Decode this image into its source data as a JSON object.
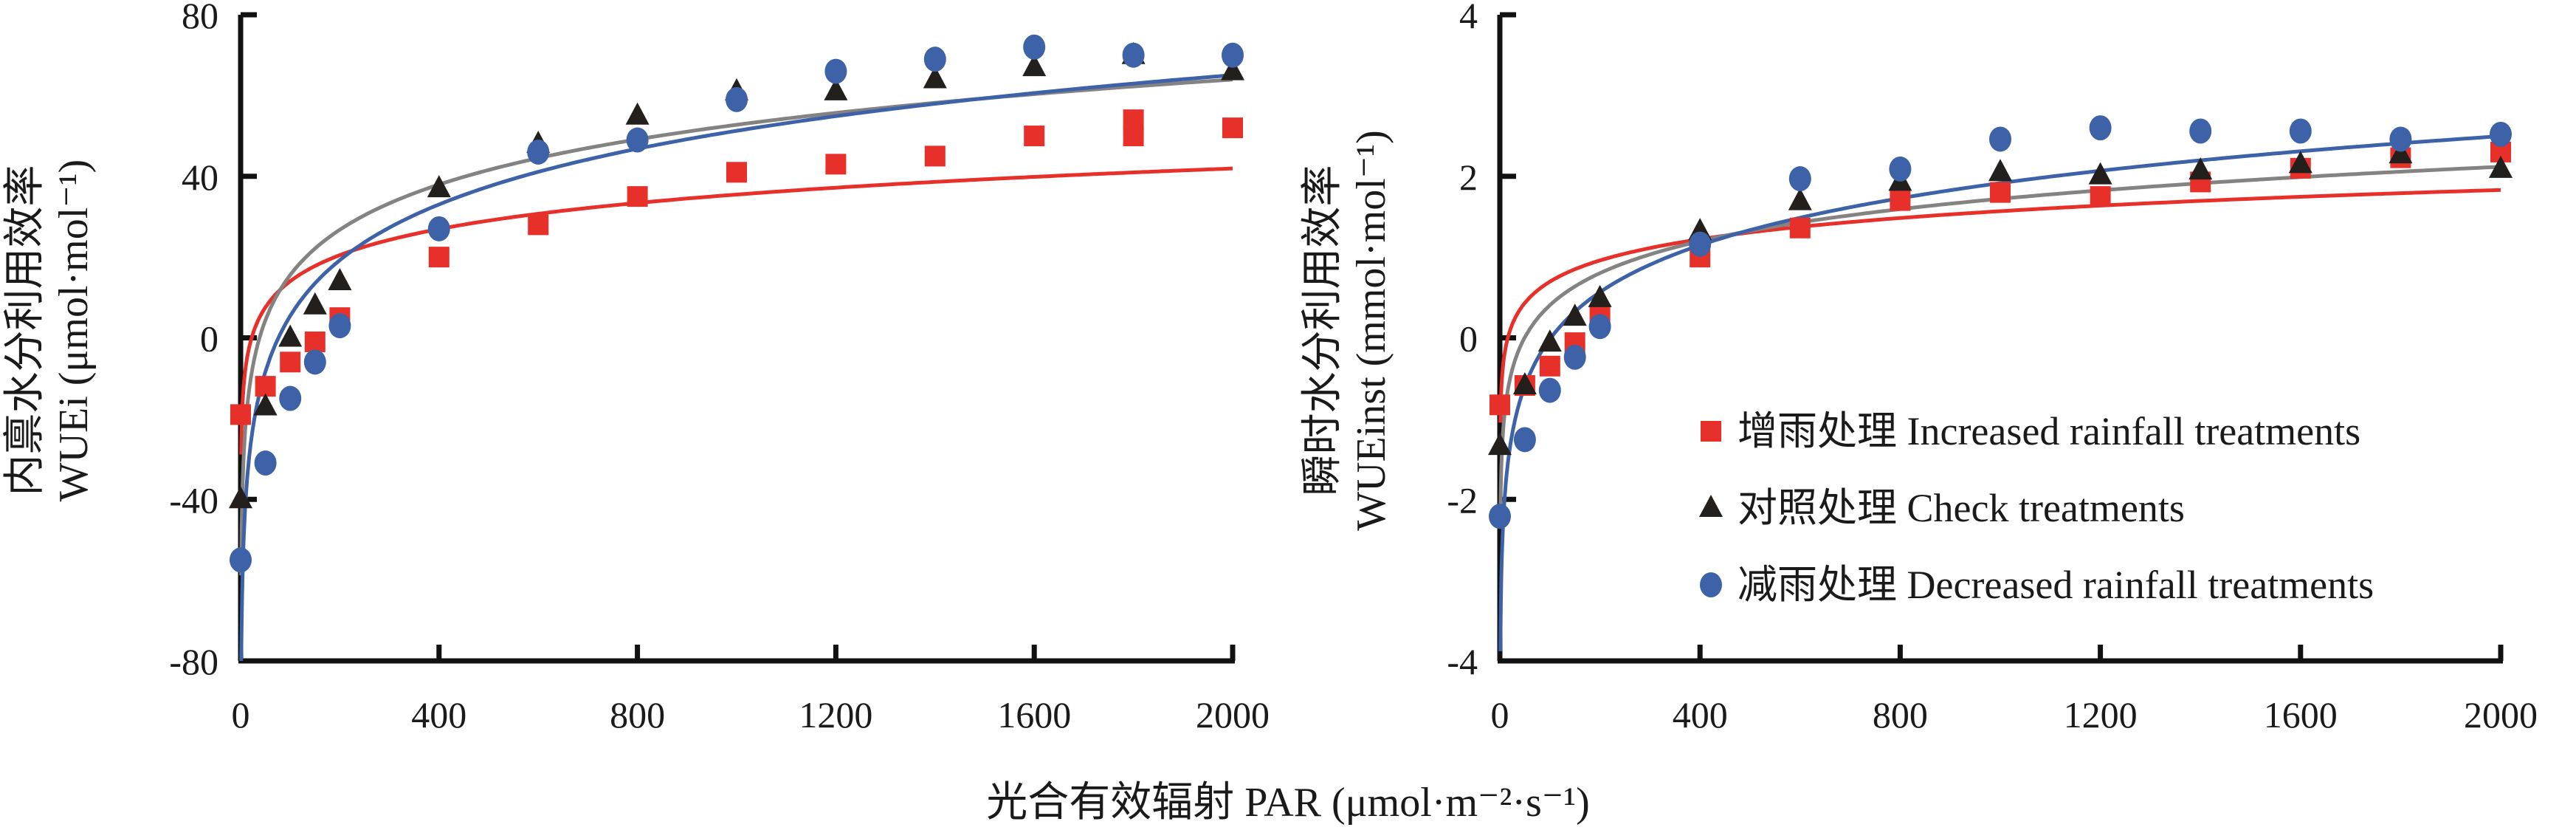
{
  "figure": {
    "x_axis_title": "光合有效辐射 PAR (μmol·m⁻²·s⁻¹)"
  },
  "legend": {
    "placement": "right-panel-lower-right",
    "entries": [
      {
        "key": "increased",
        "label": "增雨处理 Increased rainfall treatments",
        "marker": "square",
        "color": "#e8302a"
      },
      {
        "key": "check",
        "label": "对照处理 Check treatments",
        "marker": "triangle",
        "color": "#231f1c"
      },
      {
        "key": "decreased",
        "label": "减雨处理 Decreased rainfall treatments",
        "marker": "circle",
        "color": "#3d62a8"
      }
    ]
  },
  "chart_data": [
    {
      "type": "scatter",
      "title": "",
      "ylabel_line1": "内禀水分利用效率",
      "ylabel_line2": "WUEi (μmol·mol⁻¹)",
      "xlabel": "光合有效辐射 PAR (μmol·m⁻²·s⁻¹)",
      "xlim": [
        0,
        2000
      ],
      "ylim": [
        -80,
        80
      ],
      "xticks": [
        0,
        400,
        800,
        1200,
        1600,
        2000
      ],
      "yticks": [
        -80,
        -40,
        0,
        40,
        80
      ],
      "grid": false,
      "series": [
        {
          "name": "增雨处理 Increased rainfall treatments",
          "marker": "square",
          "color": "#e8302a",
          "fit_color": "#e8302a",
          "x": [
            0,
            50,
            100,
            150,
            200,
            400,
            600,
            800,
            1000,
            1200,
            1400,
            1600,
            1800,
            1800,
            2000
          ],
          "y": [
            -19,
            -12,
            -6,
            -1,
            5,
            20,
            28,
            35,
            41,
            43,
            45,
            50,
            54,
            50,
            52
          ],
          "fit": {
            "model": "logarithmic",
            "a": 9.32,
            "b": -28.9
          }
        },
        {
          "name": "对照处理 Check treatments",
          "marker": "triangle",
          "color": "#231f1c",
          "fit_color": "#858282",
          "x": [
            0,
            50,
            100,
            150,
            200,
            400,
            600,
            800,
            1000,
            1200,
            1400,
            1600,
            1800,
            2000
          ],
          "y": [
            -40,
            -17,
            0,
            8,
            14,
            37,
            48,
            55,
            61,
            61,
            64,
            67,
            70,
            66
          ],
          "fit": {
            "model": "logarithmic",
            "a": 16.15,
            "b": -58.8
          }
        },
        {
          "name": "减雨处理 Decreased rainfall treatments",
          "marker": "circle",
          "color": "#3d62a8",
          "fit_color": "#3d62a8",
          "x": [
            0,
            50,
            100,
            150,
            200,
            400,
            600,
            800,
            1000,
            1200,
            1400,
            1600,
            1800,
            2000
          ],
          "y": [
            -55,
            -31,
            -15,
            -6,
            3,
            27,
            46,
            49,
            59,
            66,
            69,
            72,
            70,
            70
          ],
          "fit": {
            "model": "logarithmic",
            "a": 19.9,
            "b": -86.2
          }
        }
      ]
    },
    {
      "type": "scatter",
      "title": "",
      "ylabel_line1": "瞬时水分利用效率",
      "ylabel_line2": "WUEinst (mmol·mol⁻¹)",
      "xlabel": "光合有效辐射 PAR (μmol·m⁻²·s⁻¹)",
      "xlim": [
        0,
        2000
      ],
      "ylim": [
        -4,
        4
      ],
      "xticks": [
        0,
        400,
        800,
        1200,
        1600,
        2000
      ],
      "yticks": [
        -4,
        -2,
        0,
        2,
        4
      ],
      "grid": false,
      "series": [
        {
          "name": "增雨处理 Increased rainfall treatments",
          "marker": "square",
          "color": "#e8302a",
          "fit_color": "#e8302a",
          "x": [
            0,
            50,
            100,
            150,
            200,
            400,
            600,
            800,
            1000,
            1200,
            1400,
            1600,
            1800,
            2000
          ],
          "y": [
            -0.83,
            -0.59,
            -0.35,
            -0.06,
            0.28,
            1.0,
            1.36,
            1.7,
            1.8,
            1.75,
            1.93,
            2.1,
            2.23,
            2.3
          ],
          "fit": {
            "model": "logarithmic",
            "a": 0.379,
            "b": -1.05
          }
        },
        {
          "name": "对照处理 Check treatments",
          "marker": "triangle",
          "color": "#231f1c",
          "fit_color": "#858282",
          "x": [
            0,
            50,
            100,
            150,
            200,
            400,
            600,
            800,
            1000,
            1200,
            1400,
            1600,
            1800,
            2000
          ],
          "y": [
            -1.34,
            -0.59,
            -0.06,
            0.26,
            0.49,
            1.32,
            1.69,
            1.93,
            2.05,
            2.01,
            2.07,
            2.15,
            2.27,
            2.09
          ],
          "fit": {
            "model": "logarithmic",
            "a": 0.572,
            "b": -2.23
          }
        },
        {
          "name": "减雨处理 Decreased rainfall treatments",
          "marker": "circle",
          "color": "#3d62a8",
          "fit_color": "#3d62a8",
          "x": [
            0,
            50,
            100,
            150,
            200,
            400,
            600,
            800,
            1000,
            1200,
            1400,
            1600,
            1800,
            2000
          ],
          "y": [
            -2.21,
            -1.26,
            -0.65,
            -0.24,
            0.14,
            1.16,
            1.97,
            2.09,
            2.46,
            2.6,
            2.56,
            2.56,
            2.46,
            2.52
          ],
          "fit": {
            "model": "logarithmic",
            "a": 0.839,
            "b": -3.88
          }
        }
      ]
    }
  ]
}
